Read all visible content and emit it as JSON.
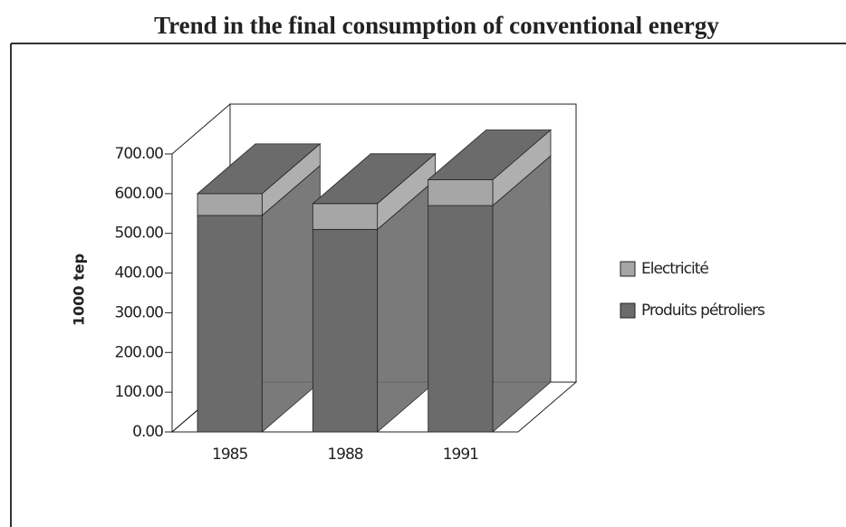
{
  "chart_data": {
    "type": "bar3d_stacked",
    "title": "Trend in the final consumption of conventional energy",
    "y_label": "1000 tep",
    "categories": [
      "1985",
      "1988",
      "1991"
    ],
    "series": [
      {
        "name": "Produits pétroliers",
        "color": "#6b6b6b",
        "values": [
          545,
          510,
          570
        ]
      },
      {
        "name": "Electricité",
        "color": "#a6a6a6",
        "values": [
          55,
          65,
          65
        ]
      }
    ],
    "ylim": [
      0,
      700
    ],
    "yticks": [
      {
        "value": 0,
        "label": "0.00"
      },
      {
        "value": 100,
        "label": "100.00"
      },
      {
        "value": 200,
        "label": "200.00"
      },
      {
        "value": 300,
        "label": "300.00"
      },
      {
        "value": 400,
        "label": "400.00"
      },
      {
        "value": 500,
        "label": "500.00"
      },
      {
        "value": 600,
        "label": "600.00"
      },
      {
        "value": 700,
        "label": "700.00"
      }
    ],
    "legend": "right"
  }
}
